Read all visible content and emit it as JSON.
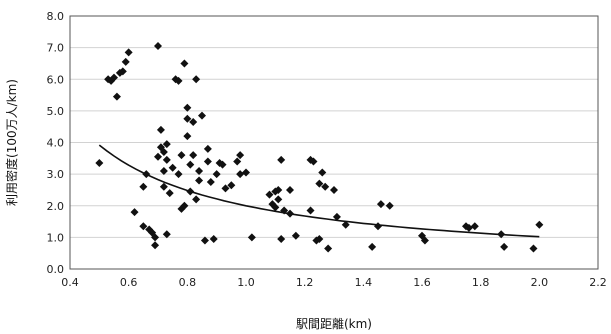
{
  "chart_data": {
    "type": "scatter",
    "title": "",
    "xlabel": "駅間距離(km)",
    "ylabel": "利用密度(100万人/km)",
    "xlim": [
      0.4,
      2.2
    ],
    "ylim": [
      0.0,
      8.0
    ],
    "x_ticks": [
      "0.4",
      "0.6",
      "0.8",
      "1.0",
      "1.2",
      "1.4",
      "1.6",
      "1.8",
      "2.0",
      "2.2"
    ],
    "y_ticks": [
      "0.0",
      "1.0",
      "2.0",
      "3.0",
      "4.0",
      "5.0",
      "6.0",
      "7.0",
      "8.0"
    ],
    "grid": "horizontal",
    "legend": "none",
    "point_color": "#111111",
    "trend_line": {
      "form": "power",
      "x_range": [
        0.5,
        2.0
      ],
      "coefficient": 2.0,
      "exponent": -0.97
    },
    "points": [
      [
        0.5,
        3.35
      ],
      [
        0.53,
        6.0
      ],
      [
        0.54,
        5.95
      ],
      [
        0.55,
        6.05
      ],
      [
        0.56,
        5.45
      ],
      [
        0.57,
        6.2
      ],
      [
        0.58,
        6.25
      ],
      [
        0.59,
        6.55
      ],
      [
        0.6,
        6.85
      ],
      [
        0.62,
        1.8
      ],
      [
        0.65,
        1.35
      ],
      [
        0.65,
        2.6
      ],
      [
        0.66,
        3.0
      ],
      [
        0.67,
        1.25
      ],
      [
        0.68,
        1.15
      ],
      [
        0.69,
        0.75
      ],
      [
        0.69,
        1.0
      ],
      [
        0.7,
        7.05
      ],
      [
        0.7,
        3.55
      ],
      [
        0.71,
        4.4
      ],
      [
        0.71,
        3.85
      ],
      [
        0.72,
        3.7
      ],
      [
        0.72,
        3.1
      ],
      [
        0.72,
        2.6
      ],
      [
        0.73,
        3.95
      ],
      [
        0.73,
        3.45
      ],
      [
        0.73,
        1.1
      ],
      [
        0.74,
        2.4
      ],
      [
        0.75,
        3.2
      ],
      [
        0.76,
        6.0
      ],
      [
        0.77,
        5.95
      ],
      [
        0.77,
        3.0
      ],
      [
        0.78,
        1.9
      ],
      [
        0.78,
        3.6
      ],
      [
        0.79,
        6.5
      ],
      [
        0.79,
        2.0
      ],
      [
        0.8,
        5.1
      ],
      [
        0.8,
        4.75
      ],
      [
        0.8,
        4.2
      ],
      [
        0.81,
        2.45
      ],
      [
        0.81,
        3.3
      ],
      [
        0.82,
        4.65
      ],
      [
        0.82,
        3.6
      ],
      [
        0.83,
        6.0
      ],
      [
        0.83,
        2.2
      ],
      [
        0.84,
        3.1
      ],
      [
        0.84,
        2.8
      ],
      [
        0.85,
        4.85
      ],
      [
        0.86,
        0.9
      ],
      [
        0.87,
        3.8
      ],
      [
        0.87,
        3.4
      ],
      [
        0.88,
        2.75
      ],
      [
        0.89,
        0.95
      ],
      [
        0.9,
        3.0
      ],
      [
        0.91,
        3.35
      ],
      [
        0.92,
        3.3
      ],
      [
        0.93,
        2.55
      ],
      [
        0.95,
        2.65
      ],
      [
        0.97,
        3.4
      ],
      [
        0.98,
        3.6
      ],
      [
        0.98,
        3.0
      ],
      [
        1.0,
        3.05
      ],
      [
        1.02,
        1.0
      ],
      [
        1.08,
        2.35
      ],
      [
        1.09,
        2.05
      ],
      [
        1.1,
        2.45
      ],
      [
        1.1,
        1.95
      ],
      [
        1.11,
        2.5
      ],
      [
        1.11,
        2.2
      ],
      [
        1.12,
        3.45
      ],
      [
        1.12,
        0.95
      ],
      [
        1.13,
        1.85
      ],
      [
        1.15,
        2.5
      ],
      [
        1.15,
        1.75
      ],
      [
        1.17,
        1.05
      ],
      [
        1.22,
        1.85
      ],
      [
        1.22,
        3.45
      ],
      [
        1.23,
        3.4
      ],
      [
        1.24,
        0.9
      ],
      [
        1.25,
        2.7
      ],
      [
        1.25,
        0.95
      ],
      [
        1.26,
        3.05
      ],
      [
        1.27,
        2.6
      ],
      [
        1.28,
        0.65
      ],
      [
        1.3,
        2.5
      ],
      [
        1.31,
        1.65
      ],
      [
        1.34,
        1.4
      ],
      [
        1.43,
        0.7
      ],
      [
        1.45,
        1.35
      ],
      [
        1.46,
        2.05
      ],
      [
        1.49,
        2.0
      ],
      [
        1.6,
        1.05
      ],
      [
        1.61,
        0.9
      ],
      [
        1.75,
        1.35
      ],
      [
        1.76,
        1.3
      ],
      [
        1.78,
        1.35
      ],
      [
        1.87,
        1.1
      ],
      [
        1.88,
        0.7
      ],
      [
        1.98,
        0.65
      ],
      [
        2.0,
        1.4
      ]
    ]
  }
}
